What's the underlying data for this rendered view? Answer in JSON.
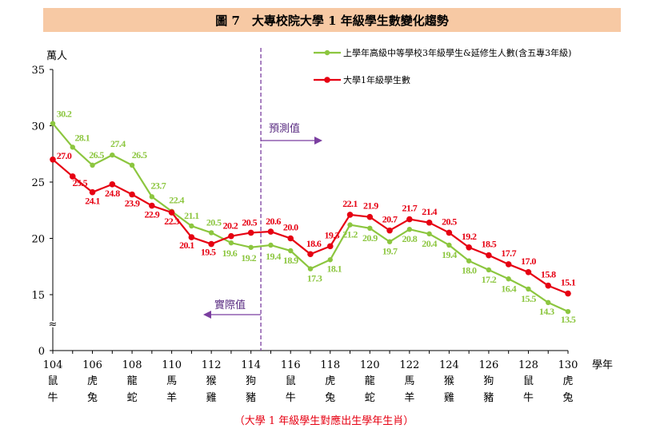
{
  "title": "圖 7　大專校院大學 1 年級學生數變化趨勢",
  "footnote": "（大學 1 年級學生對應出生學年生肖）",
  "colors": {
    "green": "#8cc63f",
    "red": "#e60012",
    "purple": "#7b3fa0",
    "title_bg": "#f7c9a4"
  },
  "chart_data": {
    "type": "line",
    "ylabel": "萬人",
    "xlabel": "學年",
    "ylim": [
      0,
      35
    ],
    "y_ticks": [
      "0",
      "15",
      "20",
      "25",
      "30",
      "35"
    ],
    "y_break_symbol": "≈",
    "x_ticks": [
      "104",
      "106",
      "108",
      "110",
      "112",
      "114",
      "116",
      "118",
      "120",
      "122",
      "124",
      "126",
      "128",
      "130"
    ],
    "zodiac": [
      [
        "鼠",
        "牛"
      ],
      [
        "虎",
        "兔"
      ],
      [
        "龍",
        "蛇"
      ],
      [
        "馬",
        "羊"
      ],
      [
        "猴",
        "雞"
      ],
      [
        "狗",
        "豬"
      ],
      [
        "鼠",
        "牛"
      ],
      [
        "虎",
        "兔"
      ],
      [
        "龍",
        "蛇"
      ],
      [
        "馬",
        "羊"
      ],
      [
        "猴",
        "雞"
      ],
      [
        "狗",
        "豬"
      ],
      [
        "鼠",
        "牛"
      ],
      [
        "虎",
        "兔"
      ]
    ],
    "x": [
      104,
      105,
      106,
      107,
      108,
      109,
      110,
      111,
      112,
      113,
      114,
      115,
      116,
      117,
      118,
      119,
      120,
      121,
      122,
      123,
      124,
      125,
      126,
      127,
      128,
      129,
      130
    ],
    "series": [
      {
        "name": "上學年高級中等學校3年級學生&延修生人數(含五專3年級)",
        "color": "#8cc63f",
        "values": [
          30.2,
          28.1,
          26.5,
          27.4,
          26.5,
          23.7,
          22.4,
          21.1,
          20.5,
          19.6,
          19.2,
          19.4,
          18.9,
          17.3,
          18.1,
          21.2,
          20.9,
          19.7,
          20.8,
          20.4,
          19.4,
          18.0,
          17.2,
          16.4,
          15.5,
          14.3,
          13.5
        ],
        "labels": [
          "30.2",
          "28.1",
          "26.5",
          "27.4",
          "26.5",
          "23.7",
          "22.4",
          "21.1",
          "20.5",
          "19.6",
          "19.2",
          "19.4",
          "18.9",
          "17.3",
          "18.1",
          "21.2",
          "20.9",
          "19.7",
          "20.8",
          "20.4",
          "19.4",
          "18.0",
          "17.2",
          "16.4",
          "15.5",
          "14.3",
          "13.5"
        ]
      },
      {
        "name": "大學1年級學生數",
        "color": "#e60012",
        "values": [
          27.0,
          25.5,
          24.1,
          24.8,
          23.9,
          22.9,
          22.3,
          20.1,
          19.5,
          20.2,
          20.5,
          20.6,
          20.0,
          18.6,
          19.3,
          22.1,
          21.9,
          20.7,
          21.7,
          21.4,
          20.5,
          19.2,
          18.5,
          17.7,
          17.0,
          15.8,
          15.1
        ],
        "labels": [
          "27.0",
          "25.5",
          "24.1",
          "24.8",
          "23.9",
          "22.9",
          "22.3",
          "20.1",
          "19.5",
          "20.2",
          "20.5",
          "20.6",
          "20.0",
          "18.6",
          "19.3",
          "22.1",
          "21.9",
          "20.7",
          "21.7",
          "21.4",
          "20.5",
          "19.2",
          "18.5",
          "17.7",
          "17.0",
          "15.8",
          "15.1"
        ]
      }
    ],
    "divider_x": 114.5,
    "annotations": {
      "forecast": "預測值",
      "actual": "實際值"
    },
    "legend_position": "top-right"
  }
}
